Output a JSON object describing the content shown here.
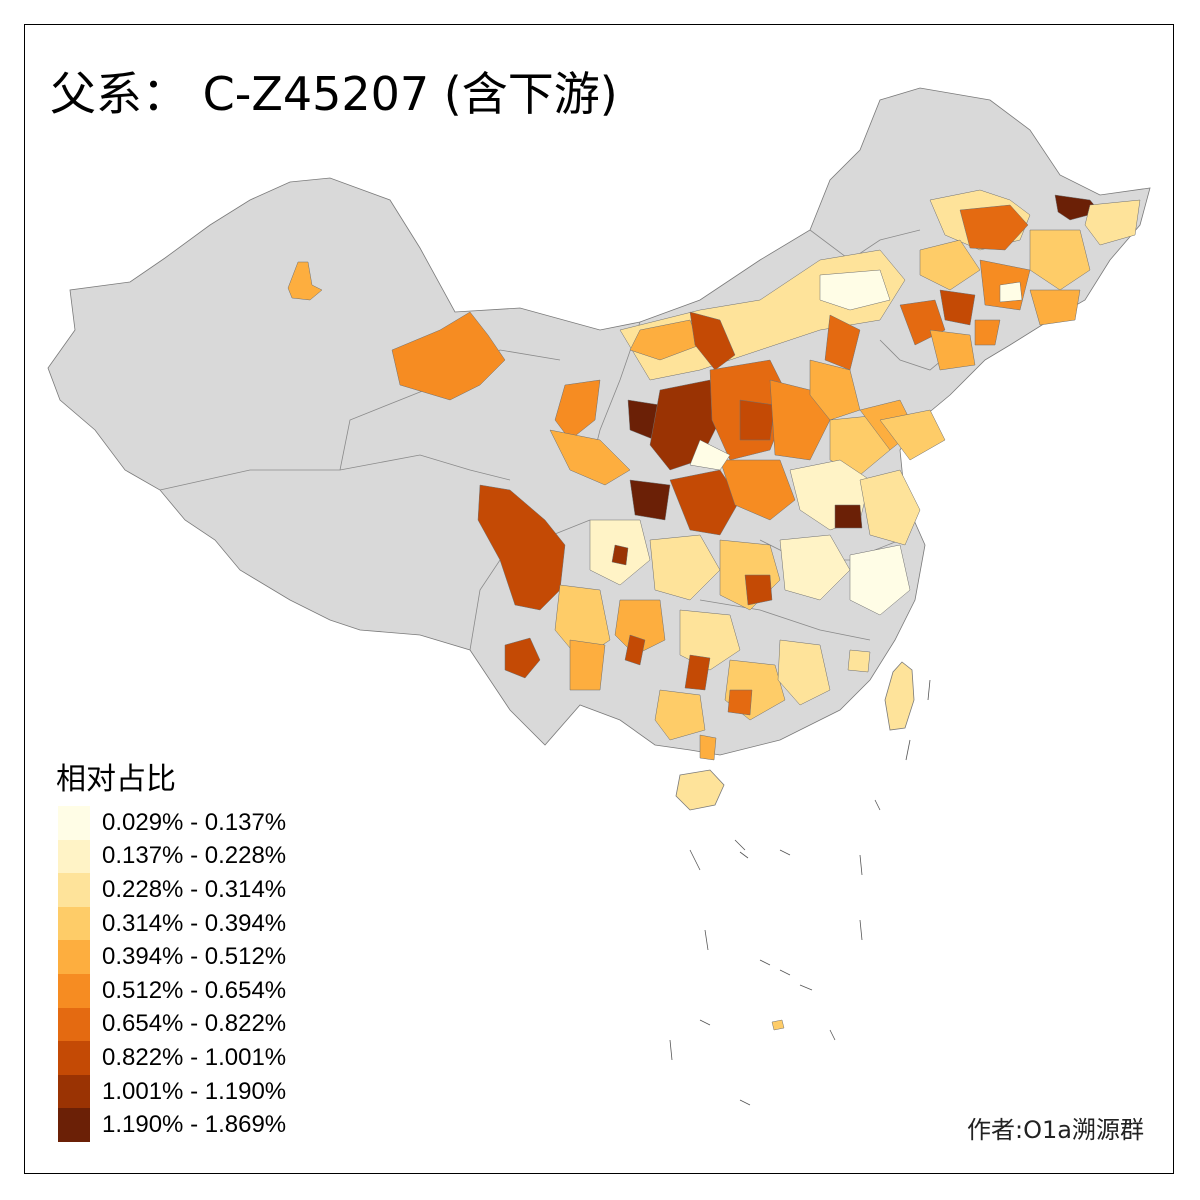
{
  "title": "父系： C-Z45207 (含下游)",
  "legend": {
    "title": "相对占比",
    "items": [
      {
        "label": "0.029% - 0.137%",
        "color": "#FFFDE6"
      },
      {
        "label": "0.137% - 0.228%",
        "color": "#FFF3C6"
      },
      {
        "label": "0.228% - 0.314%",
        "color": "#FEE39A"
      },
      {
        "label": "0.314% - 0.394%",
        "color": "#FECC68"
      },
      {
        "label": "0.394% - 0.512%",
        "color": "#FDAE3F"
      },
      {
        "label": "0.512% - 0.654%",
        "color": "#F68C22"
      },
      {
        "label": "0.654% - 0.822%",
        "color": "#E46A11"
      },
      {
        "label": "0.822% - 1.001%",
        "color": "#C44A05"
      },
      {
        "label": "1.001% - 1.190%",
        "color": "#9A3303"
      },
      {
        "label": "1.190% - 1.869%",
        "color": "#6B2006"
      }
    ]
  },
  "no_data_color": "#D9D9D9",
  "credit": "作者:O1a溯源群"
}
